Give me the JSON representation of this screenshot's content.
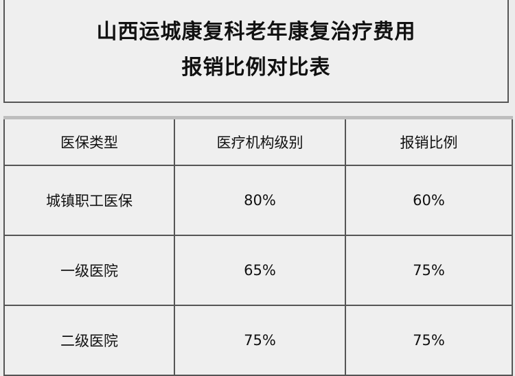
{
  "title": {
    "line1": "山西运城康复科老年康复治疗费用",
    "line2": "报销比例对比表"
  },
  "table": {
    "headers": [
      "医保类型",
      "医疗机构级别",
      "报销比例"
    ],
    "rows": [
      [
        "城镇职工医保",
        "80%",
        "60%"
      ],
      [
        "一级医院",
        "65%",
        "75%"
      ],
      [
        "二级医院",
        "75%",
        "75%"
      ]
    ]
  }
}
